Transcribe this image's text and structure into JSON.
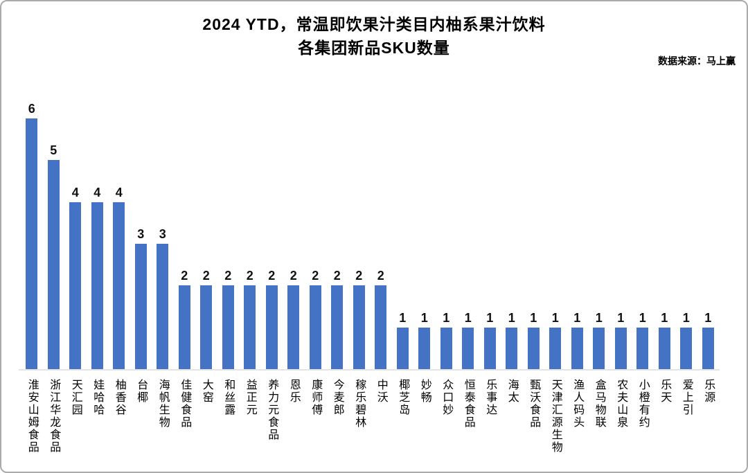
{
  "title": {
    "line1": "2024 YTD，常温即饮果汁类目内柚系果汁饮料",
    "line2": "各集团新品SKU数量"
  },
  "source_note": "数据来源：马上赢",
  "chart_data": {
    "type": "bar",
    "title": "2024 YTD，常温即饮果汁类目内柚系果汁饮料 各集团新品SKU数量",
    "xlabel": "",
    "ylabel": "",
    "ylim": [
      0,
      6.5
    ],
    "grid": false,
    "legend_position": "none",
    "value_labels_shown": true,
    "bar_color": "#4472C4",
    "axis_line_color": "#e4e4e4",
    "categories": [
      "淮安山姆食品",
      "浙江华龙食品",
      "天汇园",
      "娃哈哈",
      "柚香谷",
      "台椰",
      "海帆生物",
      "佳健食品",
      "大窑",
      "和丝露",
      "益正元",
      "养力元食品",
      "恩乐",
      "康师傅",
      "今麦郎",
      "稼乐碧林",
      "中沃",
      "椰芝岛",
      "妙畅",
      "众口妙",
      "恒泰食品",
      "乐事达",
      "海太",
      "甄沃食品",
      "天津汇源生物",
      "渔人码头",
      "盒马物联",
      "农夫山泉",
      "小橙有约",
      "乐天",
      "爱上引",
      "乐源"
    ],
    "values": [
      6,
      5,
      4,
      4,
      4,
      3,
      3,
      2,
      2,
      2,
      2,
      2,
      2,
      2,
      2,
      2,
      2,
      1,
      1,
      1,
      1,
      1,
      1,
      1,
      1,
      1,
      1,
      1,
      1,
      1,
      1,
      1
    ]
  }
}
